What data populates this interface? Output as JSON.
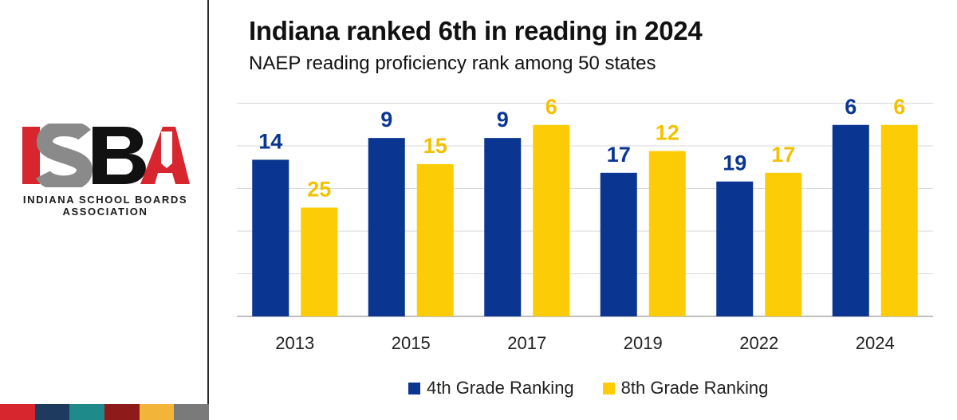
{
  "org": {
    "logo_text": "ISBA",
    "name_line1": "INDIANA SCHOOL BOARDS",
    "name_line2": "ASSOCIATION",
    "stripe_colors": [
      "#d7262e",
      "#1e3a5f",
      "#1f8a8a",
      "#8e1a1a",
      "#f2b53a",
      "#7a7a7a"
    ]
  },
  "colors": {
    "series_4th": "#0a3591",
    "series_8th": "#fccd07",
    "label_4th": "#0a3591",
    "label_8th": "#f2c200",
    "grid": "#d9d9d9",
    "axis": "#bfbfbf"
  },
  "chart_data": {
    "type": "bar",
    "title": "Indiana ranked 6th in reading in 2024",
    "subtitle": "NAEP reading proficiency rank among 50 states",
    "categories": [
      "2013",
      "2015",
      "2017",
      "2019",
      "2022",
      "2024"
    ],
    "series": [
      {
        "name": "4th Grade Ranking",
        "values": [
          14,
          9,
          9,
          17,
          19,
          6
        ]
      },
      {
        "name": "8th Grade Ranking",
        "values": [
          25,
          15,
          6,
          12,
          17,
          6
        ]
      }
    ],
    "note": "Lower rank = better; bar height = 50 - rank",
    "xlabel": "",
    "ylabel": "",
    "legend_position": "bottom",
    "grid": true
  }
}
